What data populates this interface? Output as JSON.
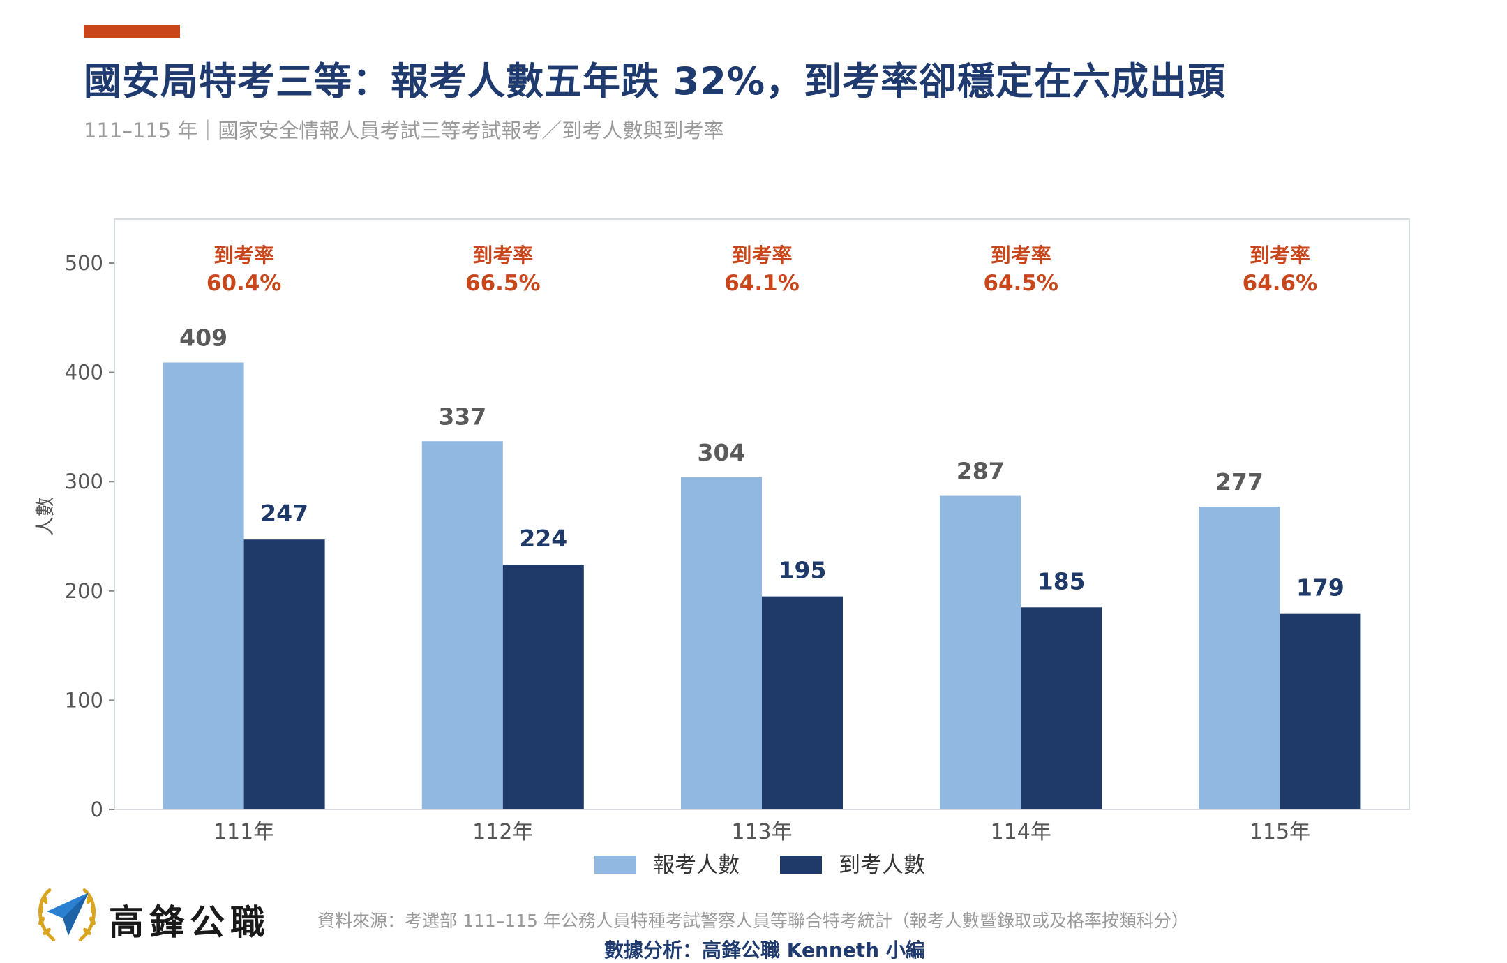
{
  "title": "國安局特考三等：報考人數五年跌 32%，到考率卻穩定在六成出頭",
  "subtitle": "111–115 年｜國家安全情報人員考試三等考試報考／到考人數與到考率",
  "colors": {
    "accent": "#c8461a",
    "title": "#1f3a6e",
    "registered": "#90b8e0",
    "attended": "#1f3a68",
    "rate": "#c8461a",
    "registered_label": "#5a5a5a",
    "attended_label": "#1f3a68"
  },
  "chart_data": {
    "type": "bar",
    "categories": [
      "111年",
      "112年",
      "113年",
      "114年",
      "115年"
    ],
    "series": [
      {
        "name": "報考人數",
        "values": [
          409,
          337,
          304,
          287,
          277
        ]
      },
      {
        "name": "到考人數",
        "values": [
          247,
          224,
          195,
          185,
          179
        ]
      }
    ],
    "rate_label": "到考率",
    "rates": [
      "60.4%",
      "66.5%",
      "64.1%",
      "64.5%",
      "64.6%"
    ],
    "ylabel": "人數",
    "ylim": [
      0,
      500
    ],
    "yticks": [
      0,
      100,
      200,
      300,
      400,
      500
    ],
    "legend_position": "bottom",
    "grid": false
  },
  "footer": {
    "brand": "高鋒公職",
    "logo_icon": "paper-plane-laurel-icon",
    "source": "資料來源：考選部 111–115 年公務人員特種考試警察人員等聯合特考統計（報考人數暨錄取或及格率按類科分）",
    "analysis": "數據分析：高鋒公職 Kenneth 小編"
  }
}
